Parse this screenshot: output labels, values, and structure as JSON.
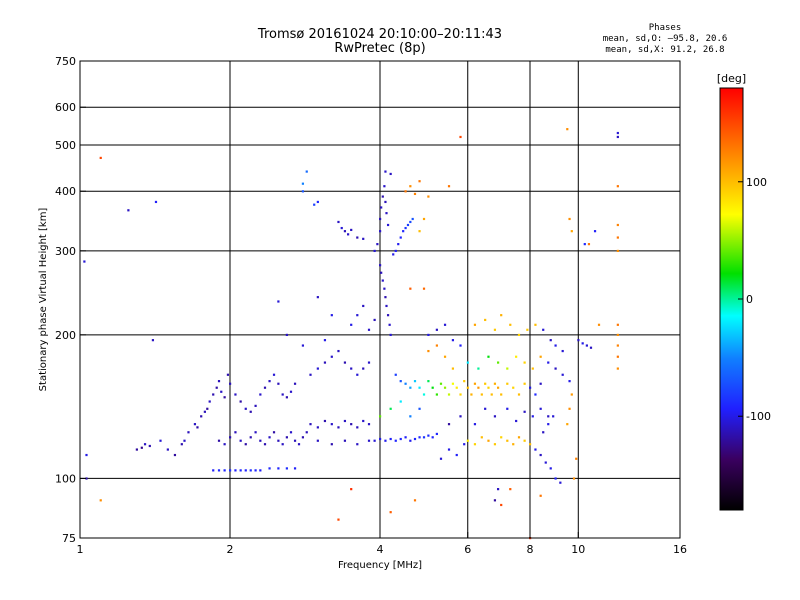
{
  "title_line1": "Tromsø 20161024 20:10:00–20:11:43",
  "title_line2": "RwPretec (8p)",
  "stats": {
    "header": "Phases",
    "o_line": "mean, sd,O: –95.8, 20.6",
    "x_line": "mean, sd,X:  91.2, 26.8"
  },
  "chart_data": {
    "type": "scatter",
    "xlabel": "Frequency [MHz]",
    "ylabel": "Stationary phase Virtual Height [km]",
    "xscale": "log",
    "yscale": "log",
    "xlim": [
      1,
      16
    ],
    "ylim": [
      75,
      750
    ],
    "xticks": [
      1,
      2,
      4,
      6,
      8,
      10,
      16
    ],
    "yticks": [
      75,
      100,
      200,
      300,
      400,
      500,
      600,
      750
    ],
    "xgrid": [
      2,
      4,
      6,
      8,
      10
    ],
    "ygrid": [
      100,
      200,
      300,
      400,
      500,
      600
    ],
    "colorbar": {
      "label": "[deg]",
      "range": [
        -180,
        180
      ],
      "ticks": [
        100,
        0,
        -100
      ]
    },
    "points": [
      [
        1.03,
        112,
        -100
      ],
      [
        1.03,
        100,
        -115
      ],
      [
        1.02,
        285,
        -105
      ],
      [
        1.1,
        470,
        150
      ],
      [
        1.25,
        365,
        -110
      ],
      [
        1.42,
        380,
        -95
      ],
      [
        1.4,
        195,
        -110
      ],
      [
        1.1,
        90,
        120
      ],
      [
        1.3,
        115,
        -120
      ],
      [
        1.33,
        116,
        -125
      ],
      [
        1.35,
        118,
        -110
      ],
      [
        1.38,
        117,
        -115
      ],
      [
        1.45,
        120,
        -105
      ],
      [
        1.5,
        115,
        -110
      ],
      [
        1.55,
        112,
        -120
      ],
      [
        1.6,
        118,
        -115
      ],
      [
        1.62,
        120,
        -108
      ],
      [
        1.65,
        125,
        -112
      ],
      [
        1.7,
        130,
        -110
      ],
      [
        1.72,
        128,
        -118
      ],
      [
        1.75,
        135,
        -115
      ],
      [
        1.78,
        138,
        -112
      ],
      [
        1.8,
        140,
        -120
      ],
      [
        1.82,
        145,
        -110
      ],
      [
        1.85,
        150,
        -115
      ],
      [
        1.88,
        155,
        -118
      ],
      [
        1.9,
        160,
        -112
      ],
      [
        1.92,
        152,
        -110
      ],
      [
        1.95,
        148,
        -120
      ],
      [
        1.98,
        165,
        -115
      ],
      [
        2.0,
        158,
        -112
      ],
      [
        2.05,
        150,
        -110
      ],
      [
        2.1,
        145,
        -118
      ],
      [
        2.15,
        140,
        -110
      ],
      [
        2.2,
        138,
        -115
      ],
      [
        2.25,
        142,
        -112
      ],
      [
        2.3,
        150,
        -108
      ],
      [
        2.35,
        155,
        -115
      ],
      [
        2.4,
        160,
        -110
      ],
      [
        2.45,
        165,
        -105
      ],
      [
        2.5,
        158,
        -112
      ],
      [
        2.55,
        150,
        -110
      ],
      [
        2.6,
        148,
        -115
      ],
      [
        2.65,
        152,
        -108
      ],
      [
        2.7,
        158,
        -112
      ],
      [
        1.9,
        120,
        -118
      ],
      [
        1.95,
        118,
        -110
      ],
      [
        2.0,
        122,
        -115
      ],
      [
        2.05,
        125,
        -112
      ],
      [
        2.1,
        120,
        -110
      ],
      [
        2.15,
        118,
        -118
      ],
      [
        2.2,
        122,
        -115
      ],
      [
        2.25,
        125,
        -110
      ],
      [
        2.3,
        120,
        -112
      ],
      [
        2.35,
        118,
        -115
      ],
      [
        2.4,
        122,
        -110
      ],
      [
        2.45,
        125,
        -118
      ],
      [
        2.5,
        120,
        -112
      ],
      [
        2.55,
        118,
        -110
      ],
      [
        2.6,
        122,
        -115
      ],
      [
        2.65,
        125,
        -108
      ],
      [
        2.7,
        120,
        -112
      ],
      [
        2.75,
        118,
        -110
      ],
      [
        2.8,
        122,
        -115
      ],
      [
        2.85,
        125,
        -112
      ],
      [
        1.85,
        104,
        -95
      ],
      [
        1.9,
        104,
        -90
      ],
      [
        1.95,
        104,
        -92
      ],
      [
        2.0,
        104,
        -88
      ],
      [
        2.05,
        104,
        -95
      ],
      [
        2.1,
        104,
        -90
      ],
      [
        2.15,
        104,
        -93
      ],
      [
        2.2,
        104,
        -87
      ],
      [
        2.25,
        104,
        -92
      ],
      [
        2.3,
        104,
        -95
      ],
      [
        2.4,
        105,
        -90
      ],
      [
        2.5,
        105,
        -92
      ],
      [
        2.6,
        105,
        -88
      ],
      [
        2.7,
        105,
        -95
      ],
      [
        2.9,
        165,
        -110
      ],
      [
        3.0,
        170,
        -105
      ],
      [
        3.1,
        175,
        -112
      ],
      [
        3.2,
        180,
        -108
      ],
      [
        3.3,
        185,
        -110
      ],
      [
        3.4,
        175,
        -115
      ],
      [
        3.5,
        170,
        -110
      ],
      [
        3.6,
        165,
        -105
      ],
      [
        3.7,
        170,
        -112
      ],
      [
        3.8,
        175,
        -108
      ],
      [
        2.9,
        130,
        -112
      ],
      [
        3.0,
        128,
        -110
      ],
      [
        3.1,
        132,
        -115
      ],
      [
        3.2,
        130,
        -108
      ],
      [
        3.3,
        128,
        -112
      ],
      [
        3.4,
        132,
        -110
      ],
      [
        3.5,
        130,
        -115
      ],
      [
        3.6,
        128,
        -112
      ],
      [
        3.7,
        132,
        -108
      ],
      [
        3.8,
        130,
        -110
      ],
      [
        3.0,
        120,
        -110
      ],
      [
        3.2,
        118,
        -115
      ],
      [
        3.4,
        120,
        -112
      ],
      [
        3.6,
        118,
        -110
      ],
      [
        3.8,
        120,
        -108
      ],
      [
        3.9,
        120,
        -105
      ],
      [
        4.0,
        121,
        -100
      ],
      [
        4.1,
        120,
        -98
      ],
      [
        4.2,
        121,
        -95
      ],
      [
        4.3,
        120,
        -92
      ],
      [
        4.4,
        121,
        -90
      ],
      [
        4.5,
        122,
        -95
      ],
      [
        4.6,
        120,
        -98
      ],
      [
        4.7,
        121,
        -92
      ],
      [
        4.8,
        122,
        -90
      ],
      [
        4.9,
        122,
        -85
      ],
      [
        5.0,
        123,
        -88
      ],
      [
        5.1,
        122,
        -92
      ],
      [
        5.2,
        124,
        -90
      ],
      [
        3.3,
        345,
        -110
      ],
      [
        3.35,
        335,
        -105
      ],
      [
        3.4,
        330,
        -112
      ],
      [
        3.45,
        325,
        -108
      ],
      [
        3.5,
        332,
        -110
      ],
      [
        3.6,
        320,
        -115
      ],
      [
        3.7,
        318,
        -110
      ],
      [
        3.9,
        300,
        -105
      ],
      [
        3.95,
        310,
        -110
      ],
      [
        4.0,
        330,
        -108
      ],
      [
        4.0,
        350,
        -112
      ],
      [
        4.02,
        370,
        -110
      ],
      [
        4.05,
        390,
        -115
      ],
      [
        4.08,
        410,
        -108
      ],
      [
        4.1,
        380,
        -112
      ],
      [
        4.12,
        360,
        -110
      ],
      [
        4.15,
        340,
        -105
      ],
      [
        4.0,
        280,
        -110
      ],
      [
        4.02,
        270,
        -112
      ],
      [
        4.05,
        260,
        -108
      ],
      [
        4.08,
        250,
        -110
      ],
      [
        4.1,
        240,
        -115
      ],
      [
        4.12,
        230,
        -110
      ],
      [
        4.15,
        220,
        -112
      ],
      [
        4.18,
        210,
        -108
      ],
      [
        4.2,
        200,
        -105
      ],
      [
        4.25,
        295,
        -100
      ],
      [
        4.3,
        300,
        -95
      ],
      [
        4.35,
        310,
        -98
      ],
      [
        4.4,
        320,
        -92
      ],
      [
        4.45,
        330,
        -90
      ],
      [
        4.5,
        335,
        -85
      ],
      [
        4.55,
        340,
        -80
      ],
      [
        4.6,
        345,
        -75
      ],
      [
        4.65,
        350,
        -70
      ],
      [
        4.1,
        440,
        -108
      ],
      [
        4.2,
        435,
        -110
      ],
      [
        2.85,
        440,
        -60
      ],
      [
        2.8,
        415,
        -50
      ],
      [
        2.95,
        375,
        -80
      ],
      [
        2.8,
        400,
        -70
      ],
      [
        3.0,
        380,
        -90
      ],
      [
        2.5,
        235,
        -105
      ],
      [
        4.3,
        165,
        -80
      ],
      [
        4.4,
        160,
        -70
      ],
      [
        4.5,
        158,
        -50
      ],
      [
        4.6,
        155,
        -40
      ],
      [
        4.7,
        160,
        -30
      ],
      [
        4.8,
        155,
        -20
      ],
      [
        4.9,
        150,
        -10
      ],
      [
        5.0,
        160,
        10
      ],
      [
        5.1,
        155,
        20
      ],
      [
        5.2,
        150,
        30
      ],
      [
        5.3,
        158,
        40
      ],
      [
        5.4,
        155,
        50
      ],
      [
        5.5,
        150,
        60
      ],
      [
        5.6,
        158,
        70
      ],
      [
        5.7,
        155,
        80
      ],
      [
        5.8,
        150,
        90
      ],
      [
        5.9,
        160,
        95
      ],
      [
        6.0,
        155,
        100
      ],
      [
        6.1,
        150,
        105
      ],
      [
        6.2,
        158,
        110
      ],
      [
        6.3,
        155,
        115
      ],
      [
        6.4,
        150,
        100
      ],
      [
        6.5,
        158,
        95
      ],
      [
        6.6,
        155,
        90
      ],
      [
        6.7,
        150,
        100
      ],
      [
        6.8,
        158,
        105
      ],
      [
        6.9,
        155,
        110
      ],
      [
        7.0,
        150,
        100
      ],
      [
        7.2,
        158,
        95
      ],
      [
        7.4,
        155,
        90
      ],
      [
        7.6,
        150,
        100
      ],
      [
        7.8,
        158,
        95
      ],
      [
        8.0,
        155,
        -100
      ],
      [
        8.2,
        150,
        -90
      ],
      [
        8.4,
        158,
        -110
      ],
      [
        6.0,
        120,
        80
      ],
      [
        6.2,
        118,
        90
      ],
      [
        6.4,
        122,
        100
      ],
      [
        6.6,
        120,
        110
      ],
      [
        6.8,
        118,
        95
      ],
      [
        7.0,
        122,
        90
      ],
      [
        7.2,
        120,
        100
      ],
      [
        7.4,
        118,
        105
      ],
      [
        7.6,
        122,
        110
      ],
      [
        7.8,
        120,
        95
      ],
      [
        8.0,
        118,
        100
      ],
      [
        8.2,
        115,
        -100
      ],
      [
        8.4,
        112,
        -110
      ],
      [
        8.6,
        108,
        -105
      ],
      [
        8.8,
        105,
        -100
      ],
      [
        9.0,
        100,
        -95
      ],
      [
        9.2,
        98,
        -105
      ],
      [
        8.5,
        125,
        -110
      ],
      [
        8.7,
        130,
        -100
      ],
      [
        8.9,
        135,
        -105
      ],
      [
        6.2,
        210,
        110
      ],
      [
        6.5,
        215,
        100
      ],
      [
        6.8,
        205,
        95
      ],
      [
        7.0,
        220,
        105
      ],
      [
        7.3,
        210,
        100
      ],
      [
        7.6,
        200,
        90
      ],
      [
        7.9,
        205,
        95
      ],
      [
        8.2,
        210,
        100
      ],
      [
        8.5,
        205,
        -105
      ],
      [
        8.8,
        195,
        -110
      ],
      [
        9.0,
        190,
        -100
      ],
      [
        9.3,
        185,
        -105
      ],
      [
        10.0,
        195,
        -110
      ],
      [
        10.2,
        192,
        -100
      ],
      [
        10.4,
        190,
        -105
      ],
      [
        10.6,
        188,
        -110
      ],
      [
        10.3,
        310,
        -90
      ],
      [
        10.8,
        330,
        -95
      ],
      [
        12.0,
        520,
        -110
      ],
      [
        12.0,
        530,
        -105
      ],
      [
        9.5,
        540,
        120
      ],
      [
        12.0,
        410,
        130
      ],
      [
        9.6,
        350,
        120
      ],
      [
        9.7,
        330,
        110
      ],
      [
        12.0,
        320,
        130
      ],
      [
        12.0,
        300,
        120
      ],
      [
        12.0,
        340,
        125
      ],
      [
        12.0,
        210,
        130
      ],
      [
        12.0,
        200,
        120
      ],
      [
        12.0,
        190,
        125
      ],
      [
        12.0,
        180,
        130
      ],
      [
        12.0,
        170,
        120
      ],
      [
        11.0,
        210,
        120
      ],
      [
        10.5,
        310,
        130
      ],
      [
        9.8,
        100,
        120
      ],
      [
        9.9,
        110,
        125
      ],
      [
        9.5,
        130,
        110
      ],
      [
        9.6,
        140,
        120
      ],
      [
        9.7,
        150,
        115
      ],
      [
        4.5,
        400,
        130
      ],
      [
        4.6,
        410,
        120
      ],
      [
        4.7,
        395,
        125
      ],
      [
        4.8,
        420,
        130
      ],
      [
        5.0,
        390,
        120
      ],
      [
        4.9,
        350,
        110
      ],
      [
        4.8,
        330,
        100
      ],
      [
        5.5,
        410,
        130
      ],
      [
        4.6,
        250,
        140
      ],
      [
        4.9,
        250,
        135
      ],
      [
        5.8,
        520,
        150
      ],
      [
        5.0,
        185,
        120
      ],
      [
        5.2,
        190,
        125
      ],
      [
        5.4,
        180,
        110
      ],
      [
        5.6,
        170,
        100
      ],
      [
        5.0,
        200,
        -100
      ],
      [
        5.2,
        205,
        -110
      ],
      [
        5.4,
        210,
        -105
      ],
      [
        5.6,
        195,
        -100
      ],
      [
        5.8,
        190,
        -95
      ],
      [
        3.3,
        82,
        150
      ],
      [
        3.5,
        95,
        160
      ],
      [
        4.2,
        85,
        140
      ],
      [
        4.7,
        90,
        130
      ],
      [
        6.8,
        90,
        -120
      ],
      [
        6.9,
        95,
        -110
      ],
      [
        7.0,
        88,
        150
      ],
      [
        7.3,
        95,
        140
      ],
      [
        8.0,
        75,
        160
      ],
      [
        8.4,
        92,
        130
      ],
      [
        3.5,
        210,
        -100
      ],
      [
        3.6,
        220,
        -105
      ],
      [
        3.7,
        230,
        -110
      ],
      [
        3.8,
        205,
        -108
      ],
      [
        3.9,
        215,
        -112
      ],
      [
        3.2,
        220,
        -100
      ],
      [
        3.0,
        240,
        -110
      ],
      [
        2.8,
        190,
        -105
      ],
      [
        2.6,
        200,
        -110
      ],
      [
        3.1,
        195,
        -100
      ],
      [
        5.3,
        110,
        -105
      ],
      [
        5.5,
        115,
        -100
      ],
      [
        5.7,
        112,
        -95
      ],
      [
        5.9,
        118,
        -100
      ],
      [
        4.0,
        135,
        40
      ],
      [
        4.2,
        140,
        10
      ],
      [
        4.4,
        145,
        -20
      ],
      [
        4.6,
        135,
        -50
      ],
      [
        4.8,
        140,
        -70
      ],
      [
        5.5,
        130,
        -120
      ],
      [
        5.8,
        135,
        -110
      ],
      [
        6.2,
        130,
        -100
      ],
      [
        6.5,
        140,
        -105
      ],
      [
        6.8,
        135,
        -110
      ],
      [
        7.2,
        140,
        -100
      ],
      [
        7.5,
        132,
        -105
      ],
      [
        7.8,
        138,
        -110
      ],
      [
        8.1,
        135,
        -100
      ],
      [
        8.4,
        140,
        -105
      ],
      [
        8.7,
        135,
        -110
      ],
      [
        6.0,
        175,
        -20
      ],
      [
        6.3,
        170,
        0
      ],
      [
        6.6,
        180,
        20
      ],
      [
        6.9,
        175,
        40
      ],
      [
        7.2,
        170,
        60
      ],
      [
        7.5,
        180,
        80
      ],
      [
        7.8,
        175,
        90
      ],
      [
        8.1,
        170,
        100
      ],
      [
        8.4,
        180,
        110
      ],
      [
        8.7,
        175,
        -100
      ],
      [
        9.0,
        170,
        -110
      ],
      [
        9.3,
        165,
        -105
      ],
      [
        9.6,
        160,
        -100
      ]
    ]
  }
}
